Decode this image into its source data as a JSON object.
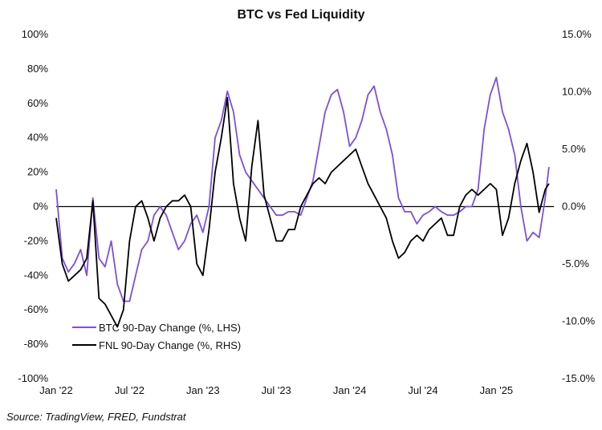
{
  "colors": {
    "btc": "#7B4FE0",
    "fnl": "#000000",
    "zero_line": "#000000"
  },
  "chart_data": {
    "type": "line",
    "title": "BTC vs Fed Liquidity",
    "source": "Source: TradingView, FRED, Fundstrat",
    "x_range": [
      0,
      40.7
    ],
    "x_unit": "months since Jan 2022",
    "x_ticks": [
      {
        "pos": 0,
        "label": "Jan '22"
      },
      {
        "pos": 6,
        "label": "Jul '22"
      },
      {
        "pos": 12,
        "label": "Jan '23"
      },
      {
        "pos": 18,
        "label": "Jul '23"
      },
      {
        "pos": 24,
        "label": "Jan '24"
      },
      {
        "pos": 30,
        "label": "Jul '24"
      },
      {
        "pos": 36,
        "label": "Jan '25"
      }
    ],
    "y_left": {
      "range": [
        -100,
        100
      ],
      "ticks": [
        {
          "v": 100,
          "label": "100%"
        },
        {
          "v": 80,
          "label": "80%"
        },
        {
          "v": 60,
          "label": "60%"
        },
        {
          "v": 40,
          "label": "40%"
        },
        {
          "v": 20,
          "label": "20%"
        },
        {
          "v": 0,
          "label": "0%"
        },
        {
          "v": -20,
          "label": "-20%"
        },
        {
          "v": -40,
          "label": "-40%"
        },
        {
          "v": -60,
          "label": "-60%"
        },
        {
          "v": -80,
          "label": "-80%"
        },
        {
          "v": -100,
          "label": "-100%"
        }
      ]
    },
    "y_right": {
      "range": [
        -15,
        15
      ],
      "ticks": [
        {
          "v": 15,
          "label": "15.0%"
        },
        {
          "v": 10,
          "label": "10.0%"
        },
        {
          "v": 5,
          "label": "5.0%"
        },
        {
          "v": 0,
          "label": "0.0%"
        },
        {
          "v": -5,
          "label": "-5.0%"
        },
        {
          "v": -10,
          "label": "-10.0%"
        },
        {
          "v": -15,
          "label": "-15.0%"
        }
      ]
    },
    "series": [
      {
        "name": "BTC 90-Day Change (%, LHS)",
        "axis": "left",
        "color_key": "btc",
        "x": [
          0,
          0.5,
          1,
          1.5,
          2,
          2.5,
          3,
          3.5,
          4,
          4.5,
          5,
          5.5,
          6,
          6.5,
          7,
          7.5,
          8,
          8.5,
          9,
          9.5,
          10,
          10.5,
          11,
          11.5,
          12,
          12.5,
          13,
          13.5,
          14,
          14.5,
          15,
          15.5,
          16,
          16.5,
          17,
          17.5,
          18,
          18.5,
          19,
          19.5,
          20,
          20.5,
          21,
          21.5,
          22,
          22.5,
          23,
          23.5,
          24,
          24.5,
          25,
          25.5,
          26,
          26.5,
          27,
          27.5,
          28,
          28.5,
          29,
          29.5,
          30,
          30.5,
          31,
          31.5,
          32,
          32.5,
          33,
          33.5,
          34,
          34.5,
          35,
          35.5,
          36,
          36.5,
          37,
          37.5,
          38,
          38.5,
          39,
          39.5,
          40,
          40.3
        ],
        "values": [
          10,
          -30,
          -38,
          -33,
          -25,
          -40,
          5,
          -30,
          -35,
          -20,
          -45,
          -55,
          -55,
          -40,
          -25,
          -20,
          -5,
          0,
          -5,
          -15,
          -25,
          -20,
          -10,
          -5,
          -15,
          0,
          40,
          50,
          67,
          55,
          30,
          20,
          15,
          10,
          5,
          0,
          -5,
          -5,
          -3,
          -3,
          -5,
          5,
          15,
          35,
          55,
          65,
          68,
          55,
          35,
          40,
          50,
          65,
          70,
          55,
          45,
          30,
          5,
          -3,
          -3,
          -10,
          -5,
          -3,
          0,
          -3,
          -5,
          -5,
          -3,
          0,
          0,
          10,
          45,
          65,
          75,
          55,
          45,
          30,
          0,
          -20,
          -15,
          -18,
          5,
          23
        ]
      },
      {
        "name": "FNL 90-Day Change (%, RHS)",
        "axis": "right",
        "color_key": "fnl",
        "x": [
          0,
          0.5,
          1,
          1.5,
          2,
          2.5,
          3,
          3.5,
          4,
          4.5,
          5,
          5.5,
          6,
          6.5,
          7,
          7.5,
          8,
          8.5,
          9,
          9.5,
          10,
          10.5,
          11,
          11.5,
          12,
          12.5,
          13,
          13.5,
          14,
          14.5,
          15,
          15.5,
          16,
          16.5,
          17,
          17.5,
          18,
          18.5,
          19,
          19.5,
          20,
          20.5,
          21,
          21.5,
          22,
          22.5,
          23,
          23.5,
          24,
          24.5,
          25,
          25.5,
          26,
          26.5,
          27,
          27.5,
          28,
          28.5,
          29,
          29.5,
          30,
          30.5,
          31,
          31.5,
          32,
          32.5,
          33,
          33.5,
          34,
          34.5,
          35,
          35.5,
          36,
          36.5,
          37,
          37.5,
          38,
          38.5,
          39,
          39.5,
          40,
          40.3
        ],
        "values": [
          -1,
          -5,
          -6.5,
          -6,
          -5.5,
          -4.5,
          0.5,
          -8,
          -8.5,
          -9.5,
          -10.5,
          -9,
          -3,
          0,
          0.5,
          -1,
          -3,
          -1,
          0,
          0.5,
          0.5,
          1,
          0,
          -5,
          -6,
          -2,
          3,
          6,
          9.5,
          2,
          -1,
          -3,
          3.5,
          7.5,
          1,
          -1,
          -3,
          -3,
          -2,
          -2,
          0,
          1,
          2,
          2.5,
          2,
          3,
          3.5,
          4,
          4.5,
          5,
          3.5,
          2,
          1,
          0,
          -1,
          -3,
          -4.5,
          -4,
          -3,
          -2.5,
          -3,
          -2,
          -1.5,
          -1,
          -2.5,
          -2.5,
          0,
          1,
          1.5,
          1,
          1.5,
          2,
          1.5,
          -2.5,
          -1,
          2,
          4,
          5.5,
          3,
          -0.5,
          1.5,
          2
        ]
      }
    ],
    "legend_placement": "bottom-left inside plot"
  }
}
